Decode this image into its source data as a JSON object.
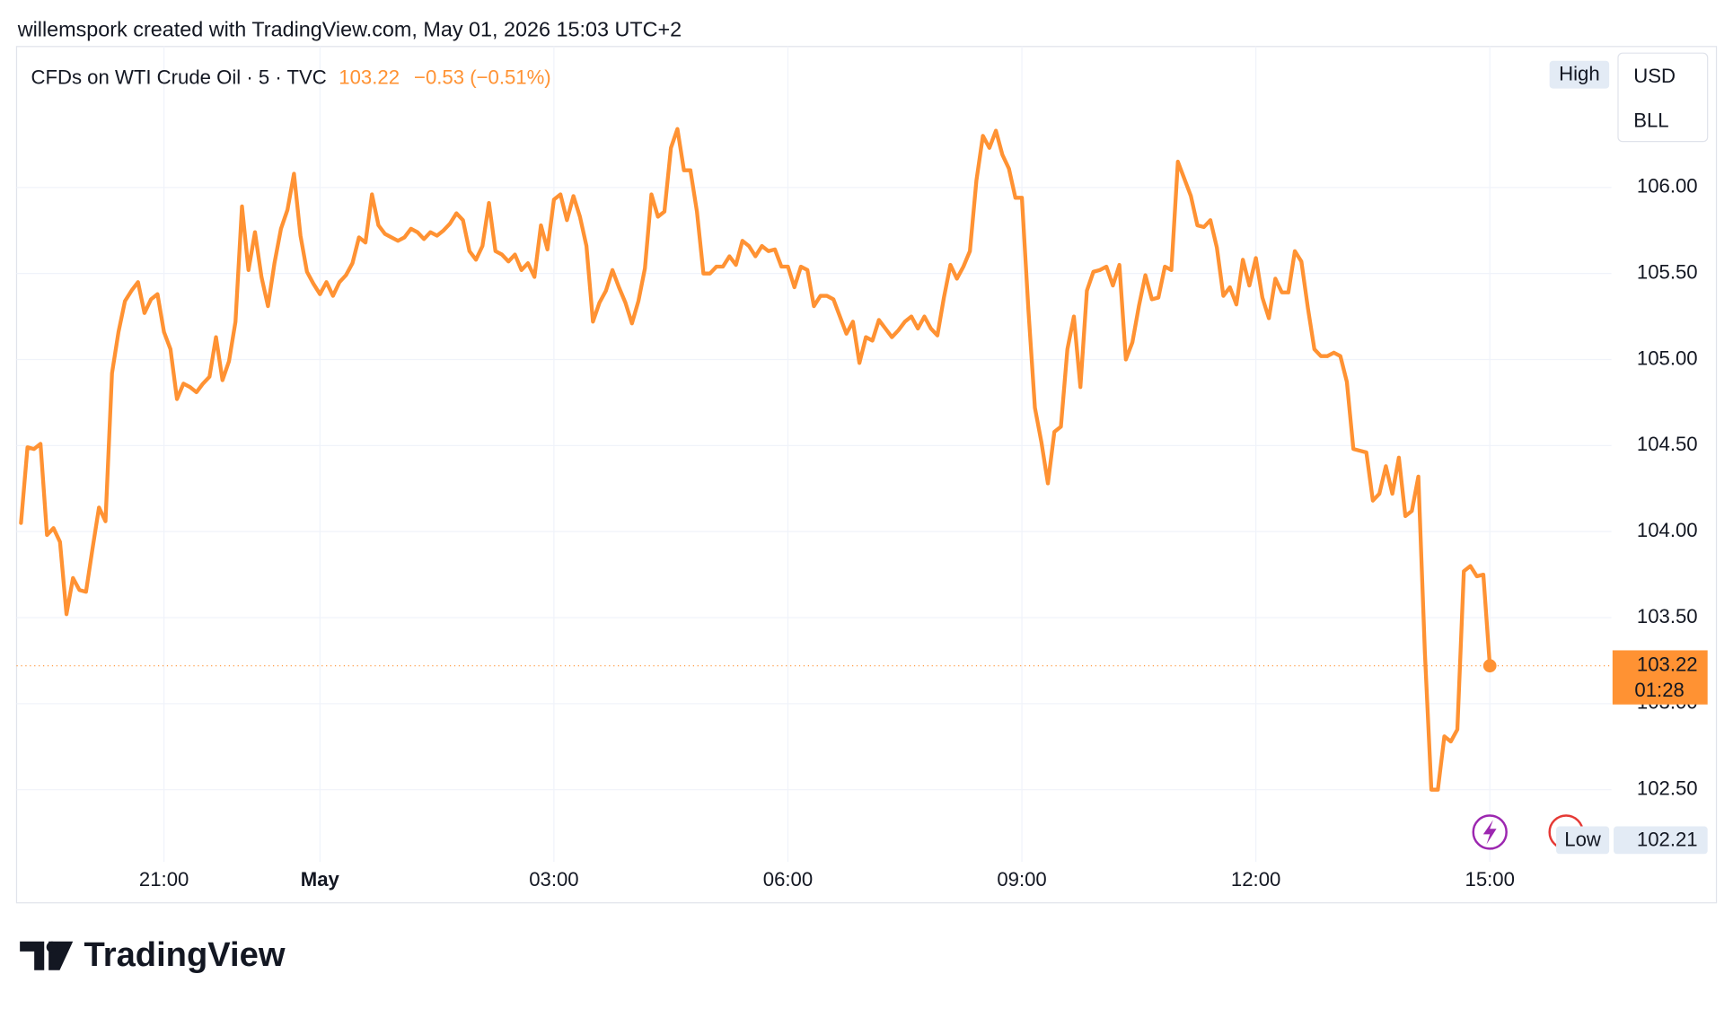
{
  "attribution": "willemspork created with TradingView.com, May 01, 2026 15:03 UTC+2",
  "brand": "TradingView",
  "chart_data": {
    "type": "line",
    "title": "CFDs on WTI Crude Oil · 5 · TVC",
    "change_label": "−0.53 (−0.51%)",
    "currency": "USD",
    "unit": "BLL",
    "high_label": "High",
    "low_label": "Low",
    "low": {
      "value": 102.21,
      "label": "102.21"
    },
    "countdown": "01:28",
    "color": "#ff9233",
    "grid": true,
    "categories": [
      null,
      null,
      null,
      null,
      null,
      null,
      null,
      null,
      null,
      null,
      null,
      null,
      null,
      null,
      null,
      null,
      null,
      null,
      null,
      null,
      null,
      null,
      "21:00",
      null,
      null,
      null,
      null,
      null,
      null,
      null,
      null,
      null,
      null,
      null,
      null,
      null,
      null,
      null,
      null,
      null,
      null,
      null,
      null,
      null,
      null,
      null,
      "May",
      null,
      null,
      null,
      null,
      null,
      null,
      null,
      null,
      null,
      null,
      null,
      null,
      null,
      null,
      null,
      null,
      null,
      null,
      null,
      null,
      null,
      null,
      null,
      null,
      null,
      null,
      null,
      null,
      null,
      null,
      null,
      null,
      null,
      null,
      null,
      "03:00",
      null,
      null,
      null,
      null,
      null,
      null,
      null,
      null,
      null,
      null,
      null,
      null,
      null,
      null,
      null,
      null,
      null,
      null,
      null,
      null,
      null,
      null,
      null,
      null,
      null,
      null,
      null,
      null,
      null,
      null,
      null,
      null,
      null,
      null,
      null,
      "06:00",
      null,
      null,
      null,
      null,
      null,
      null,
      null,
      null,
      null,
      null,
      null,
      null,
      null,
      null,
      null,
      null,
      null,
      null,
      null,
      null,
      null,
      null,
      null,
      null,
      null,
      null,
      null,
      null,
      null,
      null,
      null,
      null,
      null,
      null,
      null,
      "09:00",
      null,
      null,
      null,
      null,
      null,
      null,
      null,
      null,
      null,
      null,
      null,
      null,
      null,
      null,
      null,
      null,
      null,
      null,
      null,
      null,
      null,
      null,
      null,
      null,
      null,
      null,
      null,
      null,
      null,
      null,
      null,
      null,
      null,
      null,
      null,
      "12:00",
      null,
      null,
      null,
      null,
      null,
      null,
      null,
      null,
      null,
      null,
      null,
      null,
      null,
      null,
      null,
      null,
      null,
      null,
      null,
      null,
      null,
      null,
      null,
      null,
      null,
      null,
      null,
      null,
      null,
      null,
      null,
      null,
      null,
      null,
      null,
      "15:00"
    ],
    "values": [
      104.05,
      104.49,
      104.48,
      104.51,
      103.98,
      104.02,
      103.94,
      103.52,
      103.73,
      103.66,
      103.65,
      103.9,
      104.14,
      104.06,
      104.92,
      105.16,
      105.34,
      105.4,
      105.45,
      105.27,
      105.35,
      105.38,
      105.16,
      105.06,
      104.77,
      104.86,
      104.84,
      104.81,
      104.86,
      104.9,
      105.13,
      104.88,
      104.99,
      105.22,
      105.89,
      105.52,
      105.74,
      105.48,
      105.31,
      105.56,
      105.76,
      105.87,
      106.08,
      105.72,
      105.51,
      105.44,
      105.38,
      105.45,
      105.37,
      105.45,
      105.49,
      105.56,
      105.71,
      105.68,
      105.96,
      105.78,
      105.73,
      105.71,
      105.69,
      105.71,
      105.76,
      105.74,
      105.7,
      105.74,
      105.72,
      105.75,
      105.79,
      105.85,
      105.81,
      105.63,
      105.58,
      105.66,
      105.91,
      105.63,
      105.61,
      105.57,
      105.61,
      105.52,
      105.56,
      105.48,
      105.78,
      105.64,
      105.93,
      105.96,
      105.81,
      105.95,
      105.83,
      105.66,
      105.22,
      105.33,
      105.4,
      105.52,
      105.42,
      105.33,
      105.21,
      105.34,
      105.53,
      105.96,
      105.83,
      105.86,
      106.23,
      106.34,
      106.1,
      106.1,
      105.86,
      105.5,
      105.5,
      105.54,
      105.54,
      105.6,
      105.55,
      105.69,
      105.66,
      105.6,
      105.66,
      105.63,
      105.64,
      105.54,
      105.54,
      105.42,
      105.54,
      105.52,
      105.31,
      105.37,
      105.37,
      105.35,
      105.25,
      105.15,
      105.22,
      104.98,
      105.13,
      105.11,
      105.23,
      105.18,
      105.13,
      105.17,
      105.22,
      105.25,
      105.18,
      105.25,
      105.18,
      105.14,
      105.36,
      105.55,
      105.47,
      105.54,
      105.63,
      106.04,
      106.3,
      106.23,
      106.33,
      106.19,
      106.11,
      105.94,
      105.94,
      105.29,
      104.72,
      104.52,
      104.28,
      104.58,
      104.61,
      105.06,
      105.25,
      104.84,
      105.4,
      105.51,
      105.52,
      105.54,
      105.43,
      105.55,
      105.0,
      105.1,
      105.31,
      105.49,
      105.35,
      105.36,
      105.54,
      105.52,
      106.15,
      106.05,
      105.95,
      105.78,
      105.77,
      105.81,
      105.65,
      105.37,
      105.42,
      105.32,
      105.58,
      105.43,
      105.59,
      105.36,
      105.24,
      105.47,
      105.39,
      105.39,
      105.63,
      105.57,
      105.3,
      105.06,
      105.02,
      105.02,
      105.04,
      105.02,
      104.87,
      104.48,
      104.47,
      104.46,
      104.18,
      104.22,
      104.38,
      104.22,
      104.43,
      104.09,
      104.12,
      104.32,
      103.3,
      102.5,
      102.5,
      102.81,
      102.78,
      102.85,
      103.77,
      103.8,
      103.74,
      103.75,
      103.22
    ],
    "ylim": [
      102.08,
      106.8
    ],
    "yticks": [
      {
        "value": 102.5,
        "label": "102.50"
      },
      {
        "value": 103,
        "label": "103.00"
      },
      {
        "value": 103.5,
        "label": "103.50"
      },
      {
        "value": 104,
        "label": "104.00"
      },
      {
        "value": 104.5,
        "label": "104.50"
      },
      {
        "value": 105,
        "label": "105.00"
      },
      {
        "value": 105.5,
        "label": "105.50"
      },
      {
        "value": 106,
        "label": "106.00"
      }
    ]
  }
}
